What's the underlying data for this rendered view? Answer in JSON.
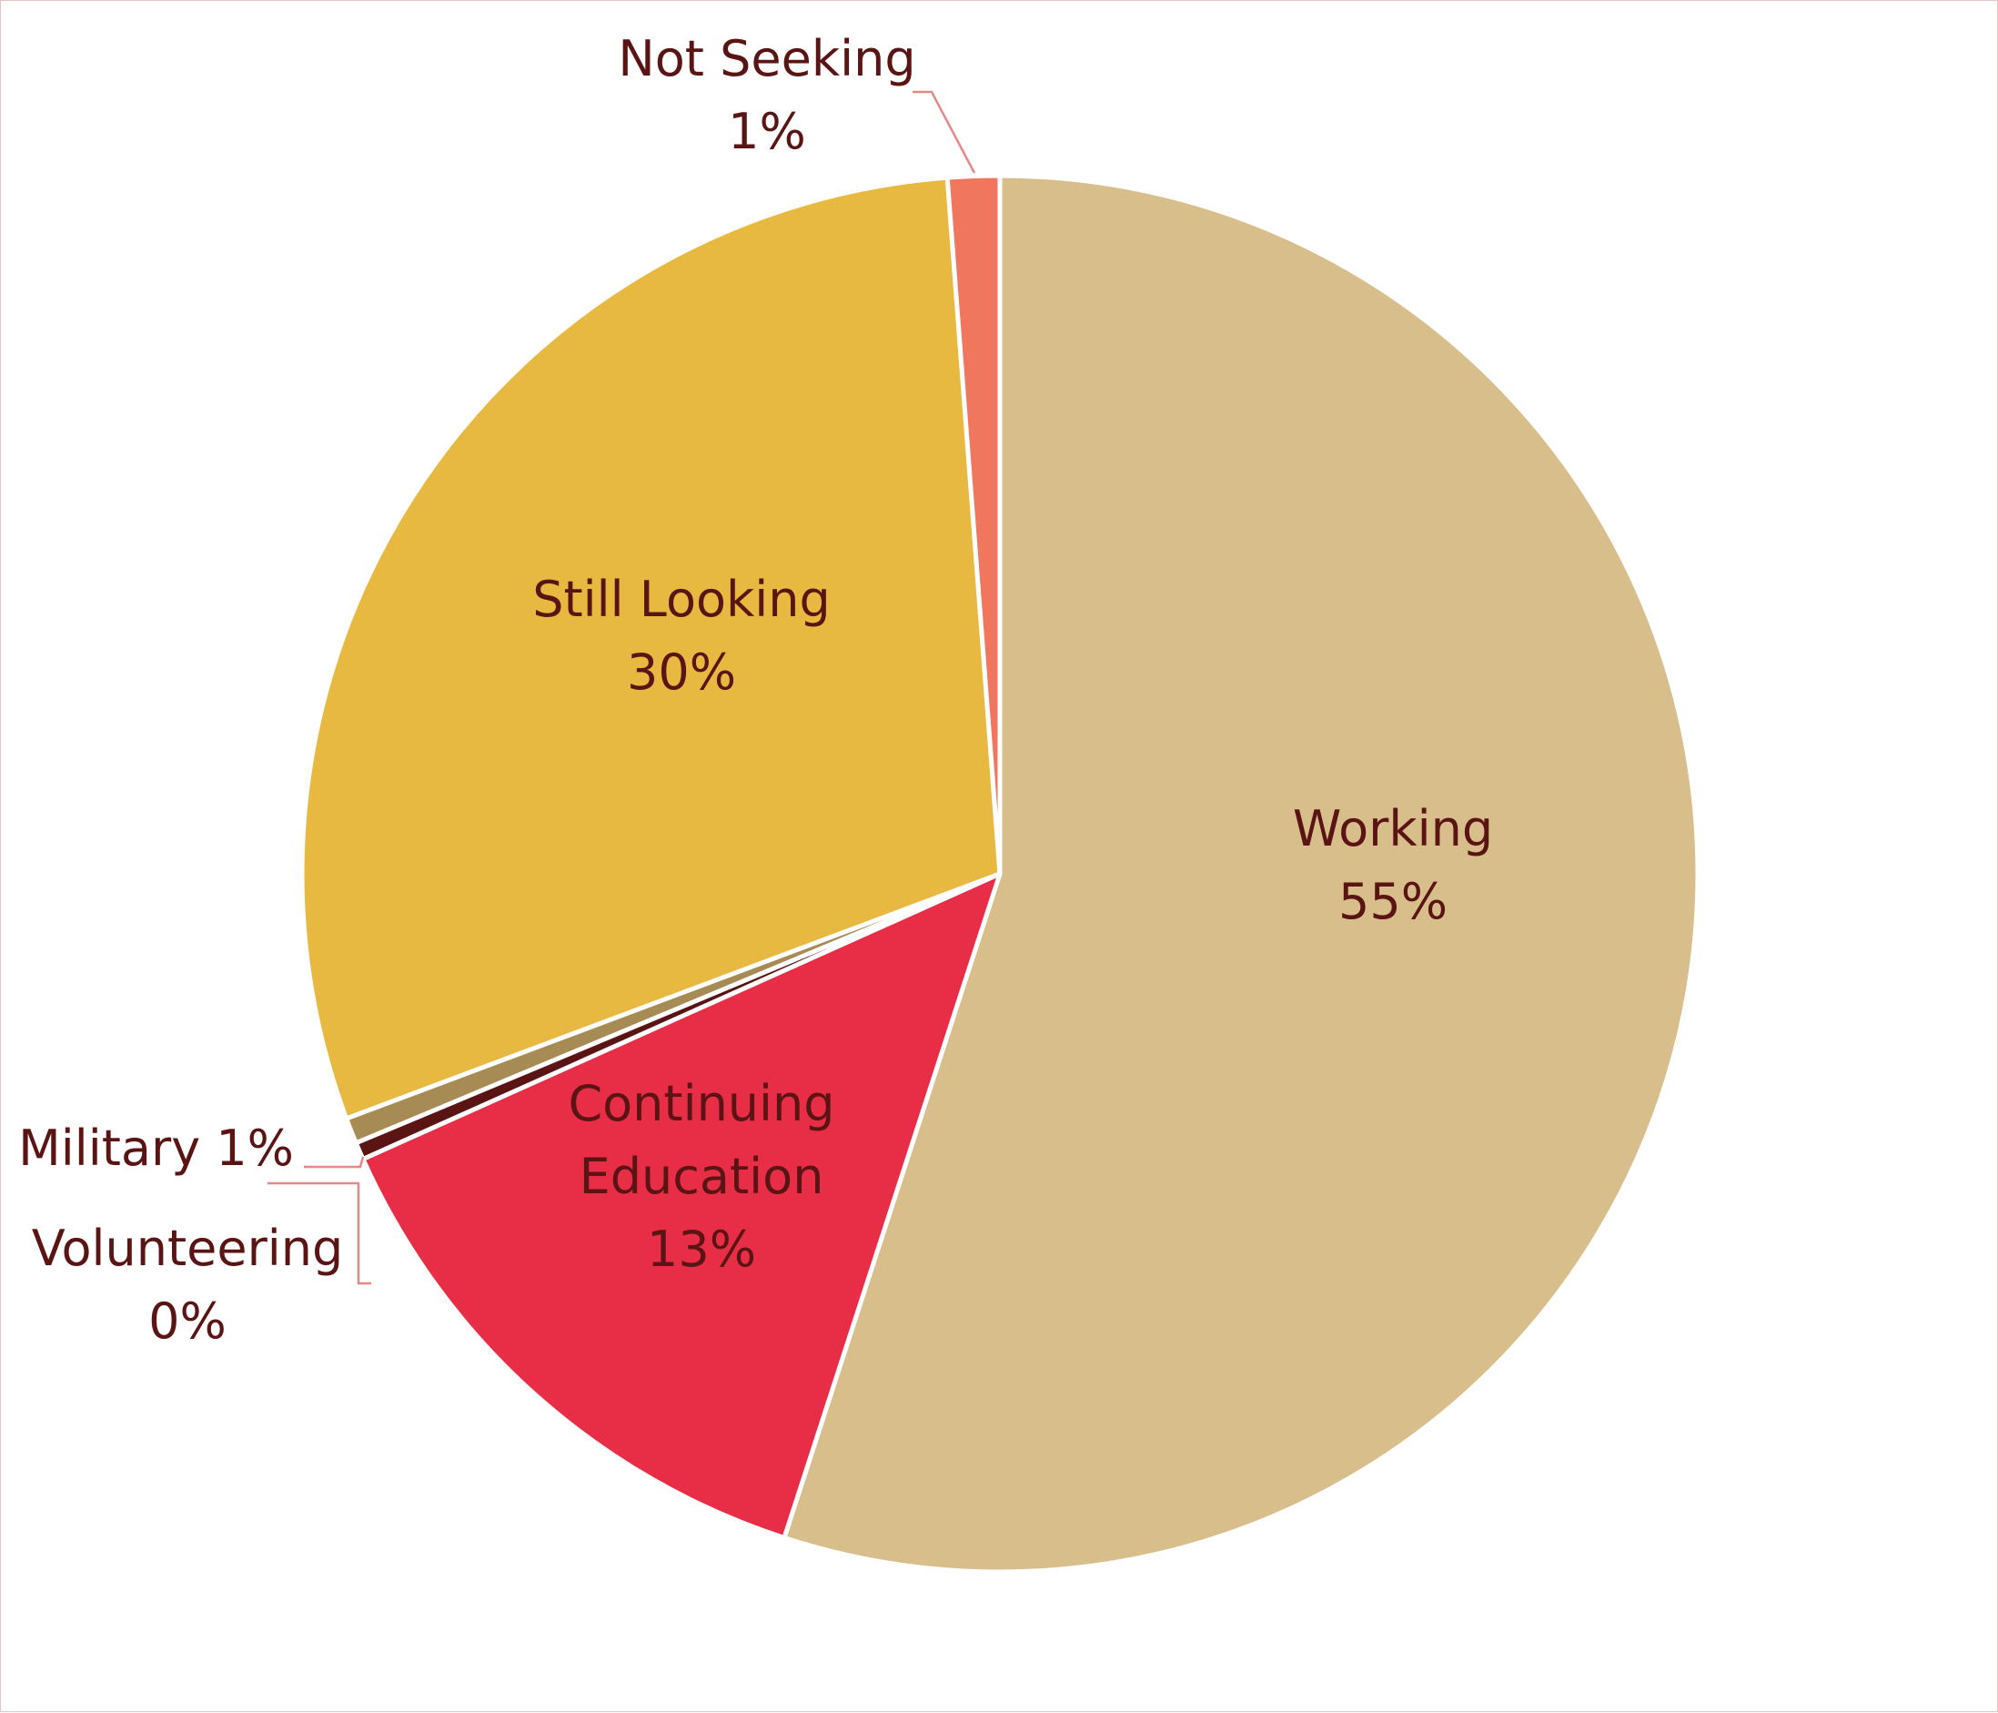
{
  "chart_data": {
    "type": "pie",
    "title": "",
    "slices": [
      {
        "name": "Working",
        "label": "Working",
        "value_label": "55%",
        "value": 55.0,
        "color": "#d7be8a"
      },
      {
        "name": "Continuing Education",
        "label_lines": [
          "Continuing",
          "Education"
        ],
        "value_label": "13%",
        "value": 13.3,
        "color": "#e82d47"
      },
      {
        "name": "Volunteering",
        "label": "Volunteering",
        "value_label": "0%",
        "value": 0.4,
        "color": "#5a1414"
      },
      {
        "name": "Military",
        "label": "Military",
        "value_label": "1%",
        "value": 0.6,
        "color": "#a78b55"
      },
      {
        "name": "Still Looking",
        "label": "Still Looking",
        "value_label": "30%",
        "value": 29.5,
        "color": "#e8b941"
      },
      {
        "name": "Not Seeking",
        "label": "Not Seeking",
        "value_label": "1%",
        "value": 1.2,
        "color": "#f0765d"
      }
    ],
    "legend": "none"
  }
}
